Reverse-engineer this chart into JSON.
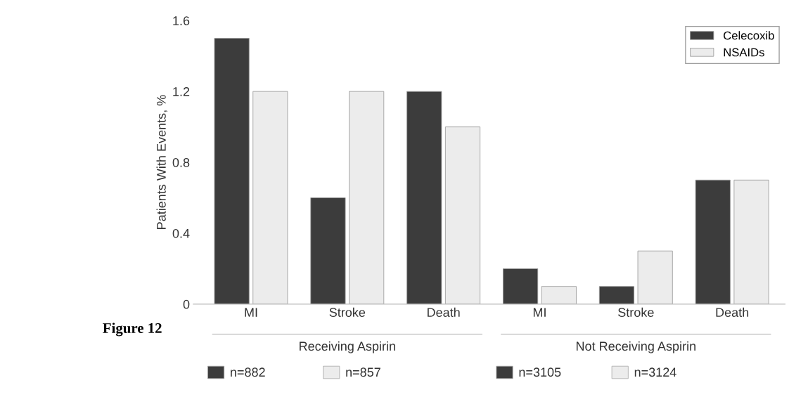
{
  "chart_data": {
    "type": "bar",
    "categories": [
      "MI",
      "Stroke",
      "Death",
      "MI",
      "Stroke",
      "Death"
    ],
    "series": [
      {
        "name": "Celecoxib",
        "color": "#3c3c3c",
        "values": [
          1.5,
          0.6,
          1.2,
          0.2,
          0.1,
          0.7
        ]
      },
      {
        "name": "NSAIDs",
        "color": "#ececec",
        "values": [
          1.2,
          1.2,
          1.0,
          0.1,
          0.3,
          0.7
        ]
      }
    ],
    "ylabel": "Patients With Events, %",
    "ylim": [
      0,
      1.6
    ],
    "yticks": [
      0,
      0.4,
      0.8,
      1.2,
      1.6
    ],
    "legend": "top right",
    "grid": false,
    "annotations": [
      "Figure 12",
      "Receiving Aspirin",
      "Not Receiving Aspirin",
      "n=882",
      "n=857",
      "n=3105",
      "n=3124"
    ]
  }
}
